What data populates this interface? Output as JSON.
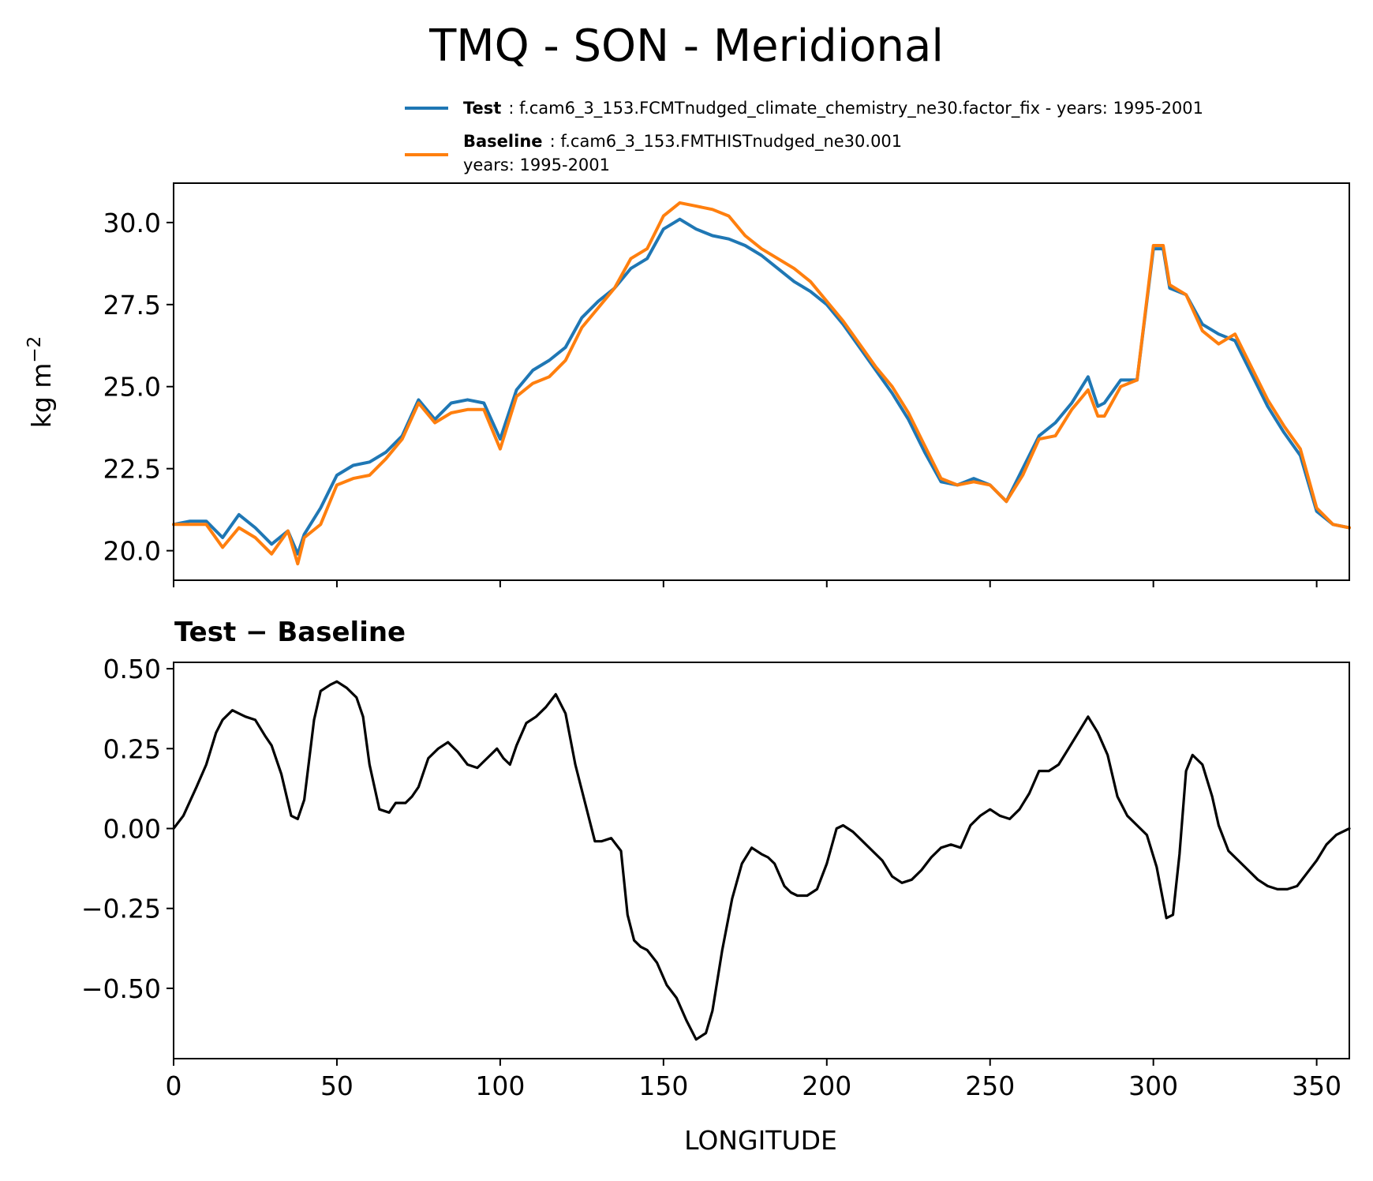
{
  "figure": {
    "title": "TMQ - SON - Meridional",
    "xlabel": "LONGITUDE"
  },
  "legend": {
    "test_label": "Test",
    "test_text": ": f.cam6_3_153.FCMTnudged_climate_chemistry_ne30.factor_fix - years: 1995-2001",
    "baseline_label": "Baseline",
    "baseline_text": ": f.cam6_3_153.FMTHISTnudged_ne30.001",
    "baseline_years": "years: 1995-2001"
  },
  "colors": {
    "test": "#1f77b4",
    "baseline": "#ff7f0e",
    "diff": "#000000"
  },
  "chart_data": [
    {
      "type": "line",
      "title": "",
      "ylabel": "kg m⁻²",
      "ylabel_base": "kg m",
      "ylabel_exp": "−2",
      "xlim": [
        0,
        360
      ],
      "ylim": [
        19.1,
        31.2
      ],
      "yticks": [
        20.0,
        22.5,
        25.0,
        27.5,
        30.0
      ],
      "ytick_labels": [
        "20.0",
        "22.5",
        "25.0",
        "27.5",
        "30.0"
      ],
      "xticks": [
        0,
        50,
        100,
        150,
        200,
        250,
        300,
        350
      ],
      "x": [
        0,
        5,
        10,
        15,
        20,
        25,
        30,
        35,
        38,
        40,
        45,
        50,
        55,
        60,
        65,
        70,
        75,
        80,
        85,
        90,
        95,
        100,
        105,
        110,
        115,
        120,
        125,
        130,
        135,
        140,
        145,
        150,
        155,
        160,
        165,
        170,
        175,
        180,
        185,
        190,
        195,
        200,
        205,
        210,
        215,
        220,
        225,
        230,
        235,
        240,
        245,
        250,
        255,
        260,
        265,
        270,
        275,
        280,
        283,
        285,
        290,
        295,
        300,
        303,
        305,
        310,
        315,
        320,
        325,
        330,
        335,
        340,
        345,
        350,
        355,
        360
      ],
      "series": [
        {
          "name": "Test",
          "values": [
            20.8,
            20.9,
            20.9,
            20.4,
            21.1,
            20.7,
            20.2,
            20.6,
            19.9,
            20.5,
            21.3,
            22.3,
            22.6,
            22.7,
            23.0,
            23.5,
            24.6,
            24.0,
            24.5,
            24.6,
            24.5,
            23.4,
            24.9,
            25.5,
            25.8,
            26.2,
            27.1,
            27.6,
            28.0,
            28.6,
            28.9,
            29.8,
            30.1,
            29.8,
            29.6,
            29.5,
            29.3,
            29.0,
            28.6,
            28.2,
            27.9,
            27.5,
            26.9,
            26.2,
            25.5,
            24.8,
            24.0,
            23.0,
            22.1,
            22.0,
            22.2,
            22.0,
            21.5,
            22.5,
            23.5,
            23.9,
            24.5,
            25.3,
            24.4,
            24.5,
            25.2,
            25.2,
            29.2,
            29.2,
            28.0,
            27.8,
            26.9,
            26.6,
            26.4,
            25.4,
            24.4,
            23.6,
            22.9,
            21.2,
            20.8,
            20.7
          ]
        },
        {
          "name": "Baseline",
          "values": [
            20.8,
            20.8,
            20.8,
            20.1,
            20.7,
            20.4,
            19.9,
            20.6,
            19.6,
            20.4,
            20.8,
            22.0,
            22.2,
            22.3,
            22.8,
            23.4,
            24.5,
            23.9,
            24.2,
            24.3,
            24.3,
            23.1,
            24.7,
            25.1,
            25.3,
            25.8,
            26.8,
            27.4,
            28.0,
            28.9,
            29.2,
            30.2,
            30.6,
            30.5,
            30.4,
            30.2,
            29.6,
            29.2,
            28.9,
            28.6,
            28.2,
            27.6,
            27.0,
            26.3,
            25.6,
            25.0,
            24.2,
            23.2,
            22.2,
            22.0,
            22.1,
            22.0,
            21.5,
            22.3,
            23.4,
            23.5,
            24.3,
            24.9,
            24.1,
            24.1,
            25.0,
            25.2,
            29.3,
            29.3,
            28.1,
            27.8,
            26.7,
            26.3,
            26.6,
            25.6,
            24.6,
            23.8,
            23.1,
            21.3,
            20.8,
            20.7
          ]
        }
      ]
    },
    {
      "type": "line",
      "title": "Test − Baseline",
      "ylabel": "",
      "xlim": [
        0,
        360
      ],
      "ylim": [
        -0.72,
        0.52
      ],
      "yticks": [
        -0.5,
        -0.25,
        0.0,
        0.25,
        0.5
      ],
      "ytick_labels": [
        "−0.50",
        "−0.25",
        "0.00",
        "0.25",
        "0.50"
      ],
      "xticks": [
        0,
        50,
        100,
        150,
        200,
        250,
        300,
        350
      ],
      "xtick_labels": [
        "0",
        "50",
        "100",
        "150",
        "200",
        "250",
        "300",
        "350"
      ],
      "x": [
        0,
        3,
        7,
        10,
        13,
        15,
        18,
        20,
        22,
        25,
        28,
        30,
        33,
        36,
        38,
        40,
        43,
        45,
        48,
        50,
        53,
        56,
        58,
        60,
        63,
        66,
        68,
        71,
        73,
        75,
        78,
        81,
        84,
        87,
        90,
        93,
        96,
        99,
        101,
        103,
        105,
        108,
        111,
        114,
        117,
        120,
        123,
        126,
        129,
        131,
        134,
        137,
        139,
        141,
        143,
        145,
        148,
        151,
        154,
        157,
        160,
        163,
        165,
        168,
        171,
        174,
        177,
        180,
        182,
        184,
        187,
        189,
        191,
        194,
        197,
        200,
        203,
        205,
        208,
        211,
        214,
        217,
        220,
        223,
        226,
        229,
        232,
        235,
        238,
        241,
        244,
        247,
        250,
        253,
        256,
        259,
        262,
        265,
        268,
        271,
        274,
        277,
        280,
        283,
        286,
        289,
        292,
        295,
        298,
        301,
        304,
        306,
        308,
        310,
        312,
        315,
        318,
        320,
        323,
        326,
        329,
        332,
        335,
        338,
        341,
        344,
        347,
        350,
        353,
        356,
        360
      ],
      "series": [
        {
          "name": "Test − Baseline",
          "values": [
            0.0,
            0.04,
            0.13,
            0.2,
            0.3,
            0.34,
            0.37,
            0.36,
            0.35,
            0.34,
            0.29,
            0.26,
            0.17,
            0.04,
            0.03,
            0.09,
            0.34,
            0.43,
            0.45,
            0.46,
            0.44,
            0.41,
            0.35,
            0.2,
            0.06,
            0.05,
            0.08,
            0.08,
            0.1,
            0.13,
            0.22,
            0.25,
            0.27,
            0.24,
            0.2,
            0.19,
            0.22,
            0.25,
            0.22,
            0.2,
            0.26,
            0.33,
            0.35,
            0.38,
            0.42,
            0.36,
            0.2,
            0.08,
            -0.04,
            -0.04,
            -0.03,
            -0.07,
            -0.27,
            -0.35,
            -0.37,
            -0.38,
            -0.42,
            -0.49,
            -0.53,
            -0.6,
            -0.66,
            -0.64,
            -0.57,
            -0.38,
            -0.22,
            -0.11,
            -0.06,
            -0.08,
            -0.09,
            -0.11,
            -0.18,
            -0.2,
            -0.21,
            -0.21,
            -0.19,
            -0.11,
            0.0,
            0.01,
            -0.01,
            -0.04,
            -0.07,
            -0.1,
            -0.15,
            -0.17,
            -0.16,
            -0.13,
            -0.09,
            -0.06,
            -0.05,
            -0.06,
            0.01,
            0.04,
            0.06,
            0.04,
            0.03,
            0.06,
            0.11,
            0.18,
            0.18,
            0.2,
            0.25,
            0.3,
            0.35,
            0.3,
            0.23,
            0.1,
            0.04,
            0.01,
            -0.02,
            -0.12,
            -0.28,
            -0.27,
            -0.08,
            0.18,
            0.23,
            0.2,
            0.1,
            0.01,
            -0.07,
            -0.1,
            -0.13,
            -0.16,
            -0.18,
            -0.19,
            -0.19,
            -0.18,
            -0.14,
            -0.1,
            -0.05,
            -0.02,
            0.0
          ]
        }
      ]
    }
  ]
}
